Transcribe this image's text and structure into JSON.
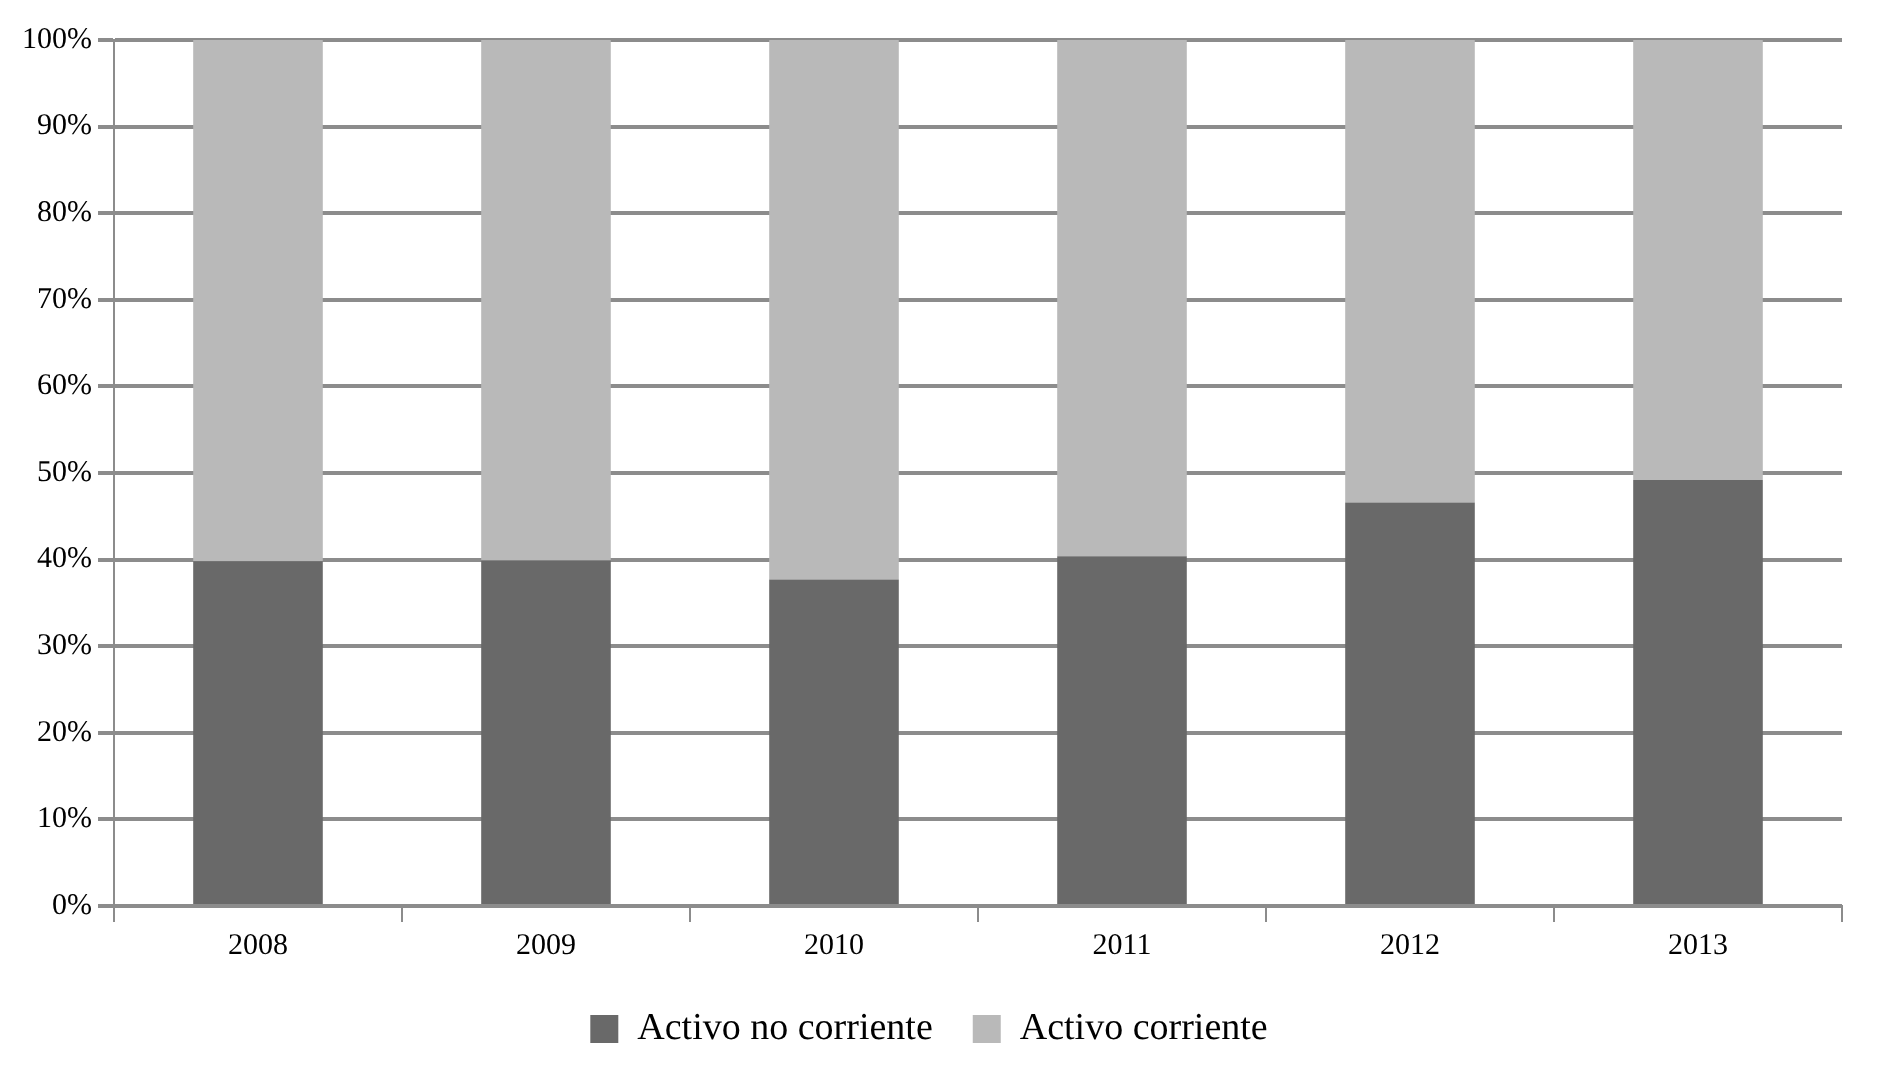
{
  "chart_data": {
    "type": "bar",
    "stacked": true,
    "categories": [
      "2008",
      "2009",
      "2010",
      "2011",
      "2012",
      "2013"
    ],
    "series": [
      {
        "name": "Activo no corriente",
        "color": "#696969",
        "values": [
          39.8,
          39.9,
          37.7,
          40.4,
          46.6,
          49.2
        ]
      },
      {
        "name": "Activo corriente",
        "color": "#b9b9b9",
        "values": [
          60.2,
          60.1,
          62.3,
          59.6,
          53.4,
          50.8
        ]
      }
    ],
    "ylim": [
      0,
      100
    ],
    "yticks": [
      {
        "value": 0,
        "label": "0%"
      },
      {
        "value": 10,
        "label": "10%"
      },
      {
        "value": 20,
        "label": "20%"
      },
      {
        "value": 30,
        "label": "30%"
      },
      {
        "value": 40,
        "label": "40%"
      },
      {
        "value": 50,
        "label": "50%"
      },
      {
        "value": 60,
        "label": "60%"
      },
      {
        "value": 70,
        "label": "70%"
      },
      {
        "value": 80,
        "label": "80%"
      },
      {
        "value": 90,
        "label": "90%"
      },
      {
        "value": 100,
        "label": "100%"
      }
    ],
    "grid": "y",
    "legend": "bottom"
  }
}
